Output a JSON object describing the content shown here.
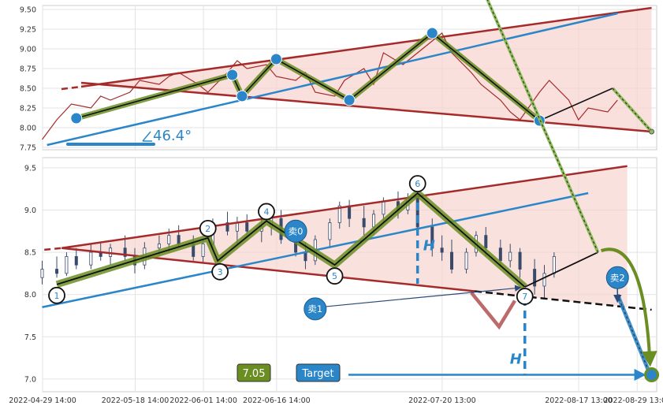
{
  "chart_data": [
    {
      "type": "line",
      "panel": "top",
      "ylim": [
        7.72,
        9.55
      ],
      "x_range": [
        "2022-04-29 14:00",
        "2022-09-02 13:00"
      ],
      "y_ticks": [
        "9.50",
        "9.25",
        "9.00",
        "8.75",
        "8.50",
        "8.25",
        "8.00",
        "7.75"
      ],
      "price_series": {
        "x": [
          "2022-04-29",
          "2022-05-02",
          "2022-05-05",
          "2022-05-09",
          "2022-05-11",
          "2022-05-13",
          "2022-05-17",
          "2022-05-19",
          "2022-05-23",
          "2022-05-25",
          "2022-05-27",
          "2022-05-31",
          "2022-06-02",
          "2022-06-06",
          "2022-06-08",
          "2022-06-10",
          "2022-06-14",
          "2022-06-16",
          "2022-06-20",
          "2022-06-22",
          "2022-06-24",
          "2022-06-28",
          "2022-06-30",
          "2022-07-04",
          "2022-07-06",
          "2022-07-08",
          "2022-07-12",
          "2022-07-14",
          "2022-07-18",
          "2022-07-20",
          "2022-07-22",
          "2022-07-26",
          "2022-07-28",
          "2022-08-01",
          "2022-08-03",
          "2022-08-05",
          "2022-08-09",
          "2022-08-11",
          "2022-08-15",
          "2022-08-17",
          "2022-08-19",
          "2022-08-23",
          "2022-08-25"
        ],
        "y": [
          7.85,
          8.1,
          8.3,
          8.25,
          8.4,
          8.35,
          8.45,
          8.6,
          8.55,
          8.65,
          8.7,
          8.55,
          8.45,
          8.7,
          8.85,
          8.75,
          8.8,
          8.65,
          8.6,
          8.7,
          8.45,
          8.4,
          8.6,
          8.75,
          8.55,
          8.95,
          8.8,
          8.9,
          9.1,
          9.2,
          8.95,
          8.7,
          8.55,
          8.35,
          8.2,
          8.1,
          8.45,
          8.6,
          8.35,
          8.1,
          8.25,
          8.2,
          8.35
        ]
      },
      "pattern_points": [
        {
          "x": "2022-05-06",
          "y": 8.12
        },
        {
          "x": "2022-06-07",
          "y": 8.67
        },
        {
          "x": "2022-06-09",
          "y": 8.4
        },
        {
          "x": "2022-06-16",
          "y": 8.87
        },
        {
          "x": "2022-07-01",
          "y": 8.35
        },
        {
          "x": "2022-07-18",
          "y": 9.2
        },
        {
          "x": "2022-08-09",
          "y": 8.09
        }
      ],
      "projection_points": [
        {
          "x": "2022-08-09",
          "y": 8.09
        },
        {
          "x": "2022-08-24",
          "y": 8.5
        },
        {
          "x": "2022-09-01",
          "y": 7.95
        }
      ],
      "upper_line": {
        "x": [
          "2022-05-07",
          "2022-09-01"
        ],
        "y": [
          8.52,
          9.52
        ]
      },
      "lower_line": {
        "x": [
          "2022-05-07",
          "2022-09-01"
        ],
        "y": [
          8.57,
          7.95
        ]
      },
      "trend_line": {
        "x": [
          "2022-04-30",
          "2022-08-25"
        ],
        "y": [
          7.78,
          9.45
        ]
      },
      "angle_label": "46.4°"
    },
    {
      "type": "candlestick",
      "panel": "bottom",
      "ylim": [
        6.85,
        9.62
      ],
      "x_range": [
        "2022-04-29 14:00",
        "2022-09-02 13:00"
      ],
      "y_ticks": [
        "9.5",
        "9.0",
        "8.5",
        "8.0",
        "7.5",
        "7.0"
      ],
      "x_ticks": [
        "2022-04-29 14:00",
        "2022-05-18 14:00",
        "2022-06-01 14:00",
        "2022-06-16 14:00",
        "2022-07-20 13:00",
        "2022-08-17 13:00",
        "2022-08-29 13:00"
      ],
      "ohlc": [
        {
          "t": "04-29",
          "o": 8.2,
          "h": 8.4,
          "l": 8.12,
          "c": 8.3
        },
        {
          "t": "05-02",
          "o": 8.3,
          "h": 8.45,
          "l": 8.2,
          "c": 8.25
        },
        {
          "t": "05-04",
          "o": 8.25,
          "h": 8.5,
          "l": 8.22,
          "c": 8.45
        },
        {
          "t": "05-06",
          "o": 8.45,
          "h": 8.55,
          "l": 8.3,
          "c": 8.35
        },
        {
          "t": "05-09",
          "o": 8.35,
          "h": 8.6,
          "l": 8.3,
          "c": 8.5
        },
        {
          "t": "05-11",
          "o": 8.5,
          "h": 8.62,
          "l": 8.4,
          "c": 8.45
        },
        {
          "t": "05-13",
          "o": 8.45,
          "h": 8.6,
          "l": 8.35,
          "c": 8.55
        },
        {
          "t": "05-16",
          "o": 8.55,
          "h": 8.7,
          "l": 8.4,
          "c": 8.45
        },
        {
          "t": "05-18",
          "o": 8.45,
          "h": 8.55,
          "l": 8.25,
          "c": 8.35
        },
        {
          "t": "05-20",
          "o": 8.35,
          "h": 8.62,
          "l": 8.3,
          "c": 8.55
        },
        {
          "t": "05-23",
          "o": 8.55,
          "h": 8.7,
          "l": 8.45,
          "c": 8.6
        },
        {
          "t": "05-25",
          "o": 8.6,
          "h": 8.78,
          "l": 8.5,
          "c": 8.7
        },
        {
          "t": "05-27",
          "o": 8.7,
          "h": 8.82,
          "l": 8.55,
          "c": 8.6
        },
        {
          "t": "05-30",
          "o": 8.6,
          "h": 8.7,
          "l": 8.4,
          "c": 8.45
        },
        {
          "t": "06-01",
          "o": 8.45,
          "h": 8.65,
          "l": 8.38,
          "c": 8.6
        },
        {
          "t": "06-03",
          "o": 8.6,
          "h": 8.9,
          "l": 8.55,
          "c": 8.85
        },
        {
          "t": "06-06",
          "o": 8.85,
          "h": 8.98,
          "l": 8.7,
          "c": 8.75
        },
        {
          "t": "06-08",
          "o": 8.75,
          "h": 8.92,
          "l": 8.6,
          "c": 8.85
        },
        {
          "t": "06-10",
          "o": 8.85,
          "h": 8.95,
          "l": 8.7,
          "c": 8.75
        },
        {
          "t": "06-13",
          "o": 8.75,
          "h": 8.9,
          "l": 8.62,
          "c": 8.8
        },
        {
          "t": "06-15",
          "o": 8.8,
          "h": 8.98,
          "l": 8.7,
          "c": 8.9
        },
        {
          "t": "06-17",
          "o": 8.9,
          "h": 9.0,
          "l": 8.6,
          "c": 8.65
        },
        {
          "t": "06-20",
          "o": 8.65,
          "h": 8.75,
          "l": 8.45,
          "c": 8.5
        },
        {
          "t": "06-22",
          "o": 8.5,
          "h": 8.62,
          "l": 8.3,
          "c": 8.4
        },
        {
          "t": "06-24",
          "o": 8.4,
          "h": 8.7,
          "l": 8.35,
          "c": 8.65
        },
        {
          "t": "06-27",
          "o": 8.65,
          "h": 8.9,
          "l": 8.55,
          "c": 8.85
        },
        {
          "t": "06-29",
          "o": 8.85,
          "h": 9.1,
          "l": 8.78,
          "c": 9.05
        },
        {
          "t": "07-01",
          "o": 9.05,
          "h": 9.12,
          "l": 8.8,
          "c": 8.9
        },
        {
          "t": "07-04",
          "o": 8.9,
          "h": 9.05,
          "l": 8.7,
          "c": 8.8
        },
        {
          "t": "07-06",
          "o": 8.8,
          "h": 9.0,
          "l": 8.7,
          "c": 8.95
        },
        {
          "t": "07-08",
          "o": 8.95,
          "h": 9.15,
          "l": 8.85,
          "c": 9.1
        },
        {
          "t": "07-11",
          "o": 9.1,
          "h": 9.22,
          "l": 8.9,
          "c": 9.0
        },
        {
          "t": "07-13",
          "o": 9.0,
          "h": 9.2,
          "l": 8.95,
          "c": 9.15
        },
        {
          "t": "07-15",
          "o": 9.15,
          "h": 9.2,
          "l": 8.7,
          "c": 8.8
        },
        {
          "t": "07-18",
          "o": 8.8,
          "h": 8.9,
          "l": 8.45,
          "c": 8.55
        },
        {
          "t": "07-20",
          "o": 8.55,
          "h": 8.7,
          "l": 8.4,
          "c": 8.5
        },
        {
          "t": "07-22",
          "o": 8.5,
          "h": 8.65,
          "l": 8.25,
          "c": 8.3
        },
        {
          "t": "07-25",
          "o": 8.3,
          "h": 8.55,
          "l": 8.25,
          "c": 8.5
        },
        {
          "t": "07-27",
          "o": 8.5,
          "h": 8.75,
          "l": 8.45,
          "c": 8.7
        },
        {
          "t": "07-29",
          "o": 8.7,
          "h": 8.8,
          "l": 8.45,
          "c": 8.55
        },
        {
          "t": "08-01",
          "o": 8.55,
          "h": 8.65,
          "l": 8.35,
          "c": 8.4
        },
        {
          "t": "08-03",
          "o": 8.4,
          "h": 8.6,
          "l": 8.32,
          "c": 8.5
        },
        {
          "t": "08-05",
          "o": 8.5,
          "h": 8.55,
          "l": 8.2,
          "c": 8.3
        },
        {
          "t": "08-08",
          "o": 8.3,
          "h": 8.42,
          "l": 8.0,
          "c": 8.1
        },
        {
          "t": "08-10",
          "o": 8.1,
          "h": 8.35,
          "l": 7.95,
          "c": 8.25
        },
        {
          "t": "08-12",
          "o": 8.25,
          "h": 8.5,
          "l": 8.2,
          "c": 8.45
        }
      ],
      "pattern_points": [
        {
          "label": "1",
          "x": "2022-05-02",
          "y": 8.12
        },
        {
          "label": "2",
          "x": "2022-06-02",
          "y": 8.67
        },
        {
          "label": "3",
          "x": "2022-06-04",
          "y": 8.4
        },
        {
          "label": "4",
          "x": "2022-06-14",
          "y": 8.87
        },
        {
          "label": "5",
          "x": "2022-06-28",
          "y": 8.35
        },
        {
          "label": "6",
          "x": "2022-07-15",
          "y": 9.2
        },
        {
          "label": "7",
          "x": "2022-08-06",
          "y": 8.09
        }
      ],
      "projection_points": [
        {
          "x": "2022-08-06",
          "y": 8.09
        },
        {
          "x": "2022-08-21",
          "y": 8.5
        },
        {
          "x": "2022-09-01",
          "y": 7.05
        }
      ],
      "upper_line": {
        "x": [
          "2022-05-03",
          "2022-08-27"
        ],
        "y": [
          8.55,
          9.52
        ]
      },
      "lower_line": {
        "x": [
          "2022-05-03",
          "2022-09-01"
        ],
        "y": [
          8.55,
          7.82
        ]
      },
      "trend_line": {
        "x": [
          "2022-04-29",
          "2022-08-19"
        ],
        "y": [
          7.85,
          9.2
        ]
      },
      "signals": [
        {
          "label": "卖0",
          "x": "2022-06-20",
          "y": 8.75
        },
        {
          "label": "卖1",
          "x": "2022-06-24",
          "y": 7.83
        },
        {
          "label": "卖2",
          "x": "2022-08-25",
          "y": 8.2
        }
      ],
      "height_label": "H",
      "target_label": "Target",
      "target_value": "7.05"
    }
  ]
}
